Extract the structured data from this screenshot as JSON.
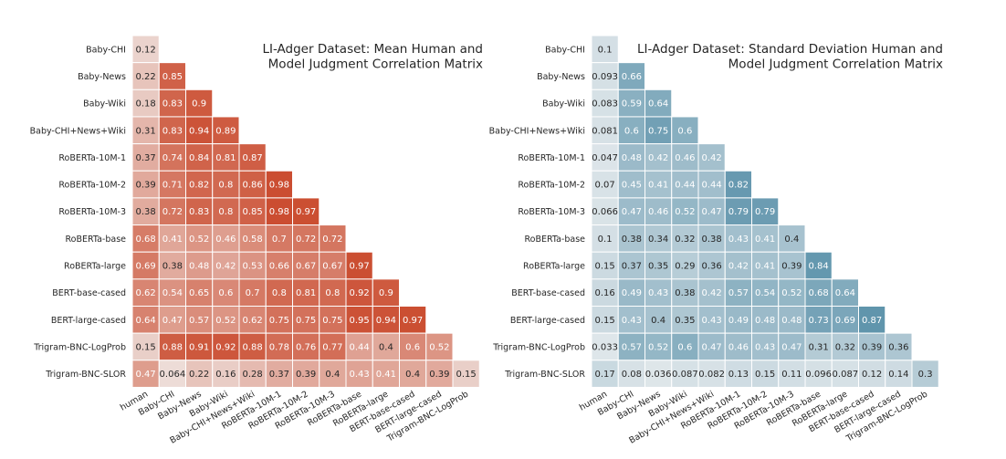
{
  "chart_data": [
    {
      "type": "heatmap",
      "title_lines": [
        "LI-Adger Dataset: Mean Human and",
        "Model Judgment Correlation Matrix"
      ],
      "colormap": "red",
      "categories": [
        "human",
        "Baby-CHI",
        "Baby-News",
        "Baby-Wiki",
        "Baby-CHI+News+Wiki",
        "RoBERTa-10M-1",
        "RoBERTa-10M-2",
        "RoBERTa-10M-3",
        "RoBERTa-base",
        "RoBERTa-large",
        "BERT-base-cased",
        "BERT-large-cased",
        "Trigram-BNC-LogProb",
        "Trigram-BNC-SLOR"
      ],
      "row_labels": [
        "Baby-CHI",
        "Baby-News",
        "Baby-Wiki",
        "Baby-CHI+News+Wiki",
        "RoBERTa-10M-1",
        "RoBERTa-10M-2",
        "RoBERTa-10M-3",
        "RoBERTa-base",
        "RoBERTa-large",
        "BERT-base-cased",
        "BERT-large-cased",
        "Trigram-BNC-LogProb",
        "Trigram-BNC-SLOR"
      ],
      "col_labels": [
        "human",
        "Baby-CHI",
        "Baby-News",
        "Baby-Wiki",
        "Baby-CHI+News+Wiki",
        "RoBERTa-10M-1",
        "RoBERTa-10M-2",
        "RoBERTa-10M-3",
        "RoBERTa-base",
        "RoBERTa-large",
        "BERT-base-cased",
        "BERT-large-cased",
        "Trigram-BNC-LogProb"
      ],
      "values": [
        [
          "0.12"
        ],
        [
          "0.22",
          "0.85"
        ],
        [
          "0.18",
          "0.83",
          "0.9"
        ],
        [
          "0.31",
          "0.83",
          "0.94",
          "0.89"
        ],
        [
          "0.37",
          "0.74",
          "0.84",
          "0.81",
          "0.87"
        ],
        [
          "0.39",
          "0.71",
          "0.82",
          "0.8",
          "0.86",
          "0.98"
        ],
        [
          "0.38",
          "0.72",
          "0.83",
          "0.8",
          "0.85",
          "0.98",
          "0.97"
        ],
        [
          "0.68",
          "0.41",
          "0.52",
          "0.46",
          "0.58",
          "0.7",
          "0.72",
          "0.72"
        ],
        [
          "0.69",
          "0.38",
          "0.48",
          "0.42",
          "0.53",
          "0.66",
          "0.67",
          "0.67",
          "0.97"
        ],
        [
          "0.62",
          "0.54",
          "0.65",
          "0.6",
          "0.7",
          "0.8",
          "0.81",
          "0.8",
          "0.92",
          "0.9"
        ],
        [
          "0.64",
          "0.47",
          "0.57",
          "0.52",
          "0.62",
          "0.75",
          "0.75",
          "0.75",
          "0.95",
          "0.94",
          "0.97"
        ],
        [
          "0.15",
          "0.88",
          "0.91",
          "0.92",
          "0.88",
          "0.78",
          "0.76",
          "0.77",
          "0.44",
          "0.4",
          "0.6",
          "0.52"
        ],
        [
          "0.47",
          "0.064",
          "0.22",
          "0.16",
          "0.28",
          "0.37",
          "0.39",
          "0.4",
          "0.43",
          "0.41",
          "0.4",
          "0.39",
          "0.15"
        ]
      ],
      "value_range": [
        0,
        1
      ]
    },
    {
      "type": "heatmap",
      "title_lines": [
        "LI-Adger Dataset: Standard Deviation Human and",
        "Model Judgment Correlation Matrix"
      ],
      "colormap": "blue",
      "categories": [
        "human",
        "Baby-CHI",
        "Baby-News",
        "Baby-Wiki",
        "Baby-CHI+News+Wiki",
        "RoBERTa-10M-1",
        "RoBERTa-10M-2",
        "RoBERTa-10M-3",
        "RoBERTa-base",
        "RoBERTa-large",
        "BERT-base-cased",
        "BERT-large-cased",
        "Trigram-BNC-LogProb",
        "Trigram-BNC-SLOR"
      ],
      "row_labels": [
        "Baby-CHI",
        "Baby-News",
        "Baby-Wiki",
        "Baby-CHI+News+Wiki",
        "RoBERTa-10M-1",
        "RoBERTa-10M-2",
        "RoBERTa-10M-3",
        "RoBERTa-base",
        "RoBERTa-large",
        "BERT-base-cased",
        "BERT-large-cased",
        "Trigram-BNC-LogProb",
        "Trigram-BNC-SLOR"
      ],
      "col_labels": [
        "human",
        "Baby-CHI",
        "Baby-News",
        "Baby-Wiki",
        "Baby-CHI+News+Wiki",
        "RoBERTa-10M-1",
        "RoBERTa-10M-2",
        "RoBERTa-10M-3",
        "RoBERTa-base",
        "RoBERTa-large",
        "BERT-base-cased",
        "BERT-large-cased",
        "Trigram-BNC-LogProb"
      ],
      "values": [
        [
          "0.1"
        ],
        [
          "0.093",
          "0.66"
        ],
        [
          "0.083",
          "0.59",
          "0.64"
        ],
        [
          "0.081",
          "0.6",
          "0.75",
          "0.6"
        ],
        [
          "0.047",
          "0.48",
          "0.42",
          "0.46",
          "0.42"
        ],
        [
          "0.07",
          "0.45",
          "0.41",
          "0.44",
          "0.44",
          "0.82"
        ],
        [
          "0.066",
          "0.47",
          "0.46",
          "0.52",
          "0.47",
          "0.79",
          "0.79"
        ],
        [
          "0.1",
          "0.38",
          "0.34",
          "0.32",
          "0.38",
          "0.43",
          "0.41",
          "0.4"
        ],
        [
          "0.15",
          "0.37",
          "0.35",
          "0.29",
          "0.36",
          "0.42",
          "0.41",
          "0.39",
          "0.84"
        ],
        [
          "0.16",
          "0.49",
          "0.43",
          "0.38",
          "0.42",
          "0.57",
          "0.54",
          "0.52",
          "0.68",
          "0.64"
        ],
        [
          "0.15",
          "0.43",
          "0.4",
          "0.35",
          "0.43",
          "0.49",
          "0.48",
          "0.48",
          "0.73",
          "0.69",
          "0.87"
        ],
        [
          "0.033",
          "0.57",
          "0.52",
          "0.6",
          "0.47",
          "0.46",
          "0.43",
          "0.47",
          "0.31",
          "0.32",
          "0.39",
          "0.36"
        ],
        [
          "0.17",
          "0.08",
          "0.036",
          "0.087",
          "0.082",
          "0.13",
          "0.15",
          "0.11",
          "0.096",
          "0.087",
          "0.12",
          "0.14",
          "0.3"
        ]
      ],
      "value_range": [
        0,
        1
      ]
    }
  ]
}
